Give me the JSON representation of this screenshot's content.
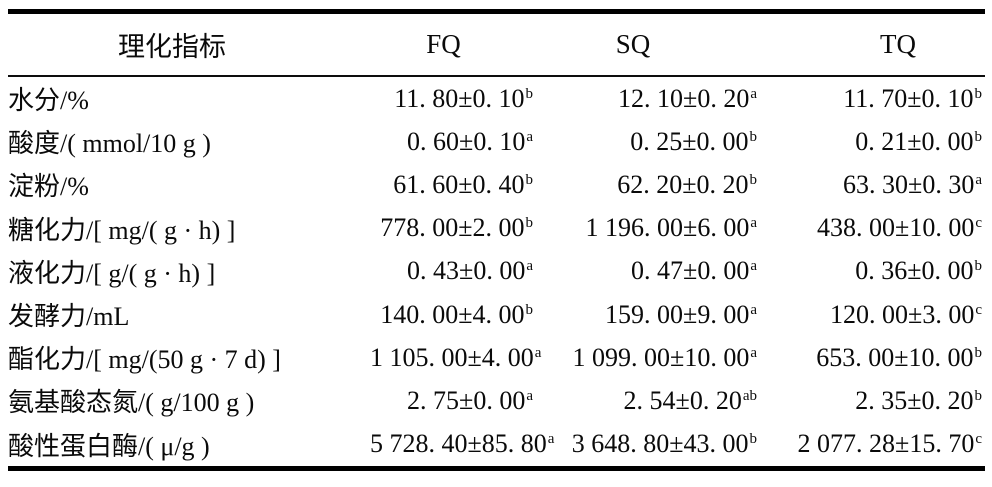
{
  "table": {
    "header": {
      "indicator": "理化指标",
      "fq": "FQ",
      "sq": "SQ",
      "tq": "TQ"
    },
    "rows": [
      {
        "label": "水分/%",
        "fq": {
          "v": "11. 80±0. 10",
          "s": "b"
        },
        "sq": {
          "v": "12. 10±0. 20",
          "s": "a"
        },
        "tq": {
          "v": "11. 70±0. 10",
          "s": "b"
        }
      },
      {
        "label": "酸度/( mmol/10 g )",
        "fq": {
          "v": "0. 60±0. 10",
          "s": "a"
        },
        "sq": {
          "v": "0. 25±0. 00",
          "s": "b"
        },
        "tq": {
          "v": "0. 21±0. 00",
          "s": "b"
        }
      },
      {
        "label": "淀粉/%",
        "fq": {
          "v": "61. 60±0. 40",
          "s": "b"
        },
        "sq": {
          "v": "62. 20±0. 20",
          "s": "b"
        },
        "tq": {
          "v": "63. 30±0. 30",
          "s": "a"
        }
      },
      {
        "label": "糖化力/[ mg/( g · h) ]",
        "fq": {
          "v": "778. 00±2. 00",
          "s": "b"
        },
        "sq": {
          "v": "1 196. 00±6. 00",
          "s": "a"
        },
        "tq": {
          "v": "438. 00±10. 00",
          "s": "c"
        }
      },
      {
        "label": "液化力/[ g/( g · h) ]",
        "fq": {
          "v": "0. 43±0. 00",
          "s": "a"
        },
        "sq": {
          "v": "0. 47±0. 00",
          "s": "a"
        },
        "tq": {
          "v": "0. 36±0. 00",
          "s": "b"
        }
      },
      {
        "label": "发酵力/mL",
        "fq": {
          "v": "140. 00±4. 00",
          "s": "b"
        },
        "sq": {
          "v": "159. 00±9. 00",
          "s": "a"
        },
        "tq": {
          "v": "120. 00±3. 00",
          "s": "c"
        }
      },
      {
        "label": "酯化力/[ mg/(50 g · 7 d) ]",
        "fq": {
          "v": "1 105. 00±4. 00",
          "s": "a"
        },
        "sq": {
          "v": "1 099. 00±10. 00",
          "s": "a"
        },
        "tq": {
          "v": "653. 00±10. 00",
          "s": "b"
        }
      },
      {
        "label": "氨基酸态氮/( g/100 g )",
        "fq": {
          "v": "2. 75±0. 00",
          "s": "a"
        },
        "sq": {
          "v": "2. 54±0. 20",
          "s": "ab"
        },
        "tq": {
          "v": "2. 35±0. 20",
          "s": "b"
        }
      },
      {
        "label": "酸性蛋白酶/( μ/g )",
        "fq": {
          "v": "5 728. 40±85. 80",
          "s": "a"
        },
        "sq": {
          "v": "3 648. 80±43. 00",
          "s": "b"
        },
        "tq": {
          "v": "2 077. 28±15. 70",
          "s": "c"
        }
      }
    ]
  },
  "chart_data": {
    "type": "table",
    "title": "理化指标",
    "columns": [
      "理化指标",
      "FQ",
      "SQ",
      "TQ"
    ],
    "rows": [
      [
        "水分/%",
        "11.80±0.10^b",
        "12.10±0.20^a",
        "11.70±0.10^b"
      ],
      [
        "酸度/(mmol/10 g)",
        "0.60±0.10^a",
        "0.25±0.00^b",
        "0.21±0.00^b"
      ],
      [
        "淀粉/%",
        "61.60±0.40^b",
        "62.20±0.20^b",
        "63.30±0.30^a"
      ],
      [
        "糖化力/[mg/(g·h)]",
        "778.00±2.00^b",
        "1 196.00±6.00^a",
        "438.00±10.00^c"
      ],
      [
        "液化力/[g/(g·h)]",
        "0.43±0.00^a",
        "0.47±0.00^a",
        "0.36±0.00^b"
      ],
      [
        "发酵力/mL",
        "140.00±4.00^b",
        "159.00±9.00^a",
        "120.00±3.00^c"
      ],
      [
        "酯化力/[mg/(50 g·7 d)]",
        "1 105.00±4.00^a",
        "1 099.00±10.00^a",
        "653.00±10.00^b"
      ],
      [
        "氨基酸态氮/(g/100 g)",
        "2.75±0.00^a",
        "2.54±0.20^ab",
        "2.35±0.20^b"
      ],
      [
        "酸性蛋白酶/(μ/g)",
        "5 728.40±85.80^a",
        "3 648.80±43.00^b",
        "2 077.28±15.70^c"
      ]
    ]
  }
}
